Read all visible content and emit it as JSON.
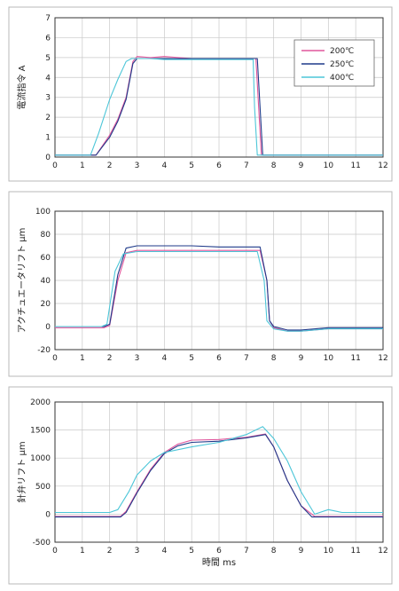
{
  "legend": {
    "entries": [
      {
        "name": "200℃",
        "color": "#e0569c"
      },
      {
        "name": "250℃",
        "color": "#1f3a8a"
      },
      {
        "name": "400℃",
        "color": "#4cc6d8"
      }
    ]
  },
  "chart_data": [
    {
      "type": "line",
      "title": "",
      "ylabel": "電流指令 A",
      "xlabel": "",
      "xlim": [
        0,
        12
      ],
      "ylim": [
        0,
        7
      ],
      "xticks": [
        0,
        1,
        2,
        3,
        4,
        5,
        6,
        7,
        8,
        9,
        10,
        11,
        12
      ],
      "yticks": [
        0,
        1,
        2,
        3,
        4,
        5,
        6,
        7
      ],
      "grid": true,
      "legend_position": "top-right",
      "series": [
        {
          "name": "200℃",
          "color": "#e0569c",
          "x": [
            0,
            1.5,
            2.0,
            2.3,
            2.6,
            2.85,
            3.0,
            3.5,
            4.0,
            5.0,
            6.0,
            7.0,
            7.35,
            7.45,
            7.55,
            8.0,
            12.0
          ],
          "y": [
            0.1,
            0.1,
            1.1,
            1.9,
            3.0,
            4.8,
            5.05,
            5.0,
            5.05,
            4.95,
            4.95,
            4.95,
            4.95,
            2.5,
            0.1,
            0.1,
            0.1
          ]
        },
        {
          "name": "250℃",
          "color": "#1f3a8a",
          "x": [
            0,
            1.5,
            2.0,
            2.3,
            2.6,
            2.85,
            3.0,
            3.5,
            4.0,
            5.0,
            6.0,
            7.0,
            7.4,
            7.5,
            7.6,
            8.0,
            12.0
          ],
          "y": [
            0.1,
            0.1,
            1.0,
            1.8,
            2.9,
            4.7,
            4.95,
            4.95,
            4.95,
            4.95,
            4.95,
            4.95,
            4.95,
            2.5,
            0.1,
            0.1,
            0.1
          ]
        },
        {
          "name": "400℃",
          "color": "#4cc6d8",
          "x": [
            0,
            1.3,
            1.6,
            2.0,
            2.3,
            2.6,
            2.8,
            3.5,
            4.0,
            5.0,
            6.0,
            7.0,
            7.25,
            7.3,
            7.4,
            8.0,
            12.0
          ],
          "y": [
            0.1,
            0.1,
            1.2,
            2.9,
            3.9,
            4.8,
            4.95,
            4.95,
            4.9,
            4.9,
            4.9,
            4.9,
            4.9,
            2.5,
            0.1,
            0.1,
            0.1
          ]
        }
      ]
    },
    {
      "type": "line",
      "title": "",
      "ylabel": "アクチュエータリフト μm",
      "xlabel": "",
      "xlim": [
        0,
        12
      ],
      "ylim": [
        -20,
        100
      ],
      "xticks": [
        0,
        1,
        2,
        3,
        4,
        5,
        6,
        7,
        8,
        9,
        10,
        11,
        12
      ],
      "yticks": [
        -20,
        0,
        20,
        40,
        60,
        80,
        100
      ],
      "grid": true,
      "series": [
        {
          "name": "200℃",
          "color": "#e0569c",
          "x": [
            0,
            1.8,
            2.0,
            2.3,
            2.6,
            3.0,
            4.0,
            5.0,
            6.0,
            7.0,
            7.5,
            7.75,
            7.85,
            8.0,
            8.5,
            9.0,
            10.0,
            12.0
          ],
          "y": [
            -1,
            -1,
            1,
            40,
            64,
            66,
            66,
            66,
            66,
            66,
            66,
            40,
            5,
            -1,
            -4,
            -4,
            -2,
            -2
          ]
        },
        {
          "name": "250℃",
          "color": "#1f3a8a",
          "x": [
            0,
            1.8,
            2.0,
            2.3,
            2.6,
            3.0,
            4.0,
            5.0,
            6.0,
            7.0,
            7.5,
            7.75,
            7.85,
            8.0,
            8.5,
            9.0,
            10.0,
            12.0
          ],
          "y": [
            0,
            0,
            2,
            45,
            68,
            70,
            70,
            70,
            69,
            69,
            69,
            40,
            5,
            0,
            -3,
            -3,
            -1,
            -1
          ]
        },
        {
          "name": "400℃",
          "color": "#4cc6d8",
          "x": [
            0,
            1.7,
            1.9,
            2.2,
            2.5,
            3.0,
            4.0,
            5.0,
            6.0,
            7.0,
            7.4,
            7.65,
            7.75,
            8.0,
            8.5,
            9.0,
            10.0,
            12.0
          ],
          "y": [
            0,
            0,
            2,
            48,
            63,
            65,
            65,
            65,
            65,
            65,
            65,
            40,
            5,
            -2,
            -4,
            -4,
            -2,
            -2
          ]
        }
      ]
    },
    {
      "type": "line",
      "title": "",
      "ylabel": "針弁リフト μm",
      "xlabel": "時間 ms",
      "xlim": [
        0,
        12
      ],
      "ylim": [
        -500,
        2000
      ],
      "xticks": [
        0,
        1,
        2,
        3,
        4,
        5,
        6,
        7,
        8,
        9,
        10,
        11,
        12
      ],
      "yticks": [
        -500,
        0,
        500,
        1000,
        1500,
        2000
      ],
      "grid": true,
      "series": [
        {
          "name": "200℃",
          "color": "#e0569c",
          "x": [
            0,
            2.4,
            2.6,
            3.0,
            3.5,
            4.0,
            4.5,
            5.0,
            6.0,
            7.0,
            7.7,
            8.0,
            8.5,
            9.0,
            9.5,
            10.0,
            12.0
          ],
          "y": [
            -40,
            -40,
            50,
            400,
            800,
            1100,
            1250,
            1320,
            1330,
            1370,
            1430,
            1200,
            600,
            150,
            -40,
            -40,
            -40
          ]
        },
        {
          "name": "250℃",
          "color": "#1f3a8a",
          "x": [
            0,
            2.4,
            2.6,
            3.0,
            3.5,
            4.0,
            4.5,
            5.0,
            6.0,
            7.0,
            7.7,
            8.0,
            8.5,
            9.0,
            9.4,
            10.0,
            12.0
          ],
          "y": [
            -50,
            -50,
            30,
            380,
            780,
            1080,
            1220,
            1280,
            1300,
            1360,
            1420,
            1200,
            600,
            150,
            -50,
            -50,
            -50
          ]
        },
        {
          "name": "400℃",
          "color": "#4cc6d8",
          "x": [
            0,
            2.0,
            2.3,
            2.7,
            3.0,
            3.5,
            4.0,
            5.0,
            6.0,
            7.0,
            7.6,
            8.0,
            8.5,
            9.0,
            9.5,
            10.0,
            10.5,
            12.0
          ],
          "y": [
            30,
            30,
            80,
            400,
            700,
            950,
            1100,
            1200,
            1280,
            1420,
            1560,
            1350,
            950,
            400,
            0,
            80,
            30,
            30
          ]
        }
      ]
    }
  ]
}
